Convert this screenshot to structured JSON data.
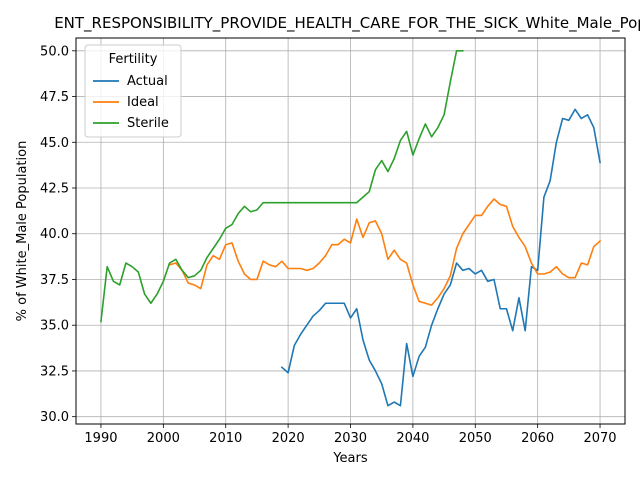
{
  "chart_data": {
    "type": "line",
    "title": "ENT_RESPONSIBILITY_PROVIDE_HEALTH_CARE_FOR_THE_SICK_White_Male_Pop",
    "xlabel": "Years",
    "ylabel": "% of White_Male Population",
    "xlim": [
      1986,
      2074
    ],
    "ylim": [
      29.6,
      50.7
    ],
    "xticks": [
      1990,
      2000,
      2010,
      2020,
      2030,
      2040,
      2050,
      2060,
      2070
    ],
    "yticks": [
      30.0,
      32.5,
      35.0,
      37.5,
      40.0,
      42.5,
      45.0,
      47.5,
      50.0
    ],
    "xtick_labels": [
      "1990",
      "2000",
      "2010",
      "2020",
      "2030",
      "2040",
      "2050",
      "2060",
      "2070"
    ],
    "ytick_labels": [
      "30.0",
      "32.5",
      "35.0",
      "37.5",
      "40.0",
      "42.5",
      "45.0",
      "47.5",
      "50.0"
    ],
    "grid": true,
    "legend": {
      "title": "Fertility",
      "placement": "upper-left"
    },
    "series": [
      {
        "name": "Actual",
        "color": "#1f77b4",
        "x": [
          2019,
          2020,
          2021,
          2022,
          2023,
          2024,
          2025,
          2026,
          2027,
          2028,
          2029,
          2030,
          2031,
          2032,
          2033,
          2034,
          2035,
          2036,
          2037,
          2038,
          2039,
          2040,
          2041,
          2042,
          2043,
          2044,
          2045,
          2046,
          2047,
          2048,
          2049,
          2050,
          2051,
          2052,
          2053,
          2054,
          2055,
          2056,
          2057,
          2058,
          2059,
          2060,
          2061,
          2062,
          2063,
          2064,
          2065,
          2066,
          2067,
          2068,
          2069,
          2070
        ],
        "y": [
          32.7,
          32.4,
          33.9,
          34.5,
          35.0,
          35.5,
          35.8,
          36.2,
          36.2,
          36.2,
          36.2,
          35.4,
          35.9,
          34.2,
          33.1,
          32.5,
          31.8,
          30.6,
          30.8,
          30.6,
          34.0,
          32.2,
          33.3,
          33.8,
          35.0,
          35.9,
          36.7,
          37.2,
          38.4,
          38.0,
          38.1,
          37.8,
          38.0,
          37.4,
          37.5,
          35.9,
          35.9,
          34.7,
          36.5,
          34.7,
          38.2,
          38.0,
          42.0,
          42.9,
          45.0,
          46.3,
          46.2,
          46.8,
          46.3,
          46.5,
          45.8,
          43.9
        ]
      },
      {
        "name": "Ideal",
        "color": "#ff7f0e",
        "x": [
          2001,
          2002,
          2003,
          2004,
          2005,
          2006,
          2007,
          2008,
          2009,
          2010,
          2011,
          2012,
          2013,
          2014,
          2015,
          2016,
          2017,
          2018,
          2019,
          2020,
          2021,
          2022,
          2023,
          2024,
          2025,
          2026,
          2027,
          2028,
          2029,
          2030,
          2031,
          2032,
          2033,
          2034,
          2035,
          2036,
          2037,
          2038,
          2039,
          2040,
          2041,
          2042,
          2043,
          2044,
          2045,
          2046,
          2047,
          2048,
          2049,
          2050,
          2051,
          2052,
          2053,
          2054,
          2055,
          2056,
          2057,
          2058,
          2059,
          2060,
          2061,
          2062,
          2063,
          2064,
          2065,
          2066,
          2067,
          2068,
          2069,
          2070
        ],
        "y": [
          38.3,
          38.4,
          38.0,
          37.3,
          37.2,
          37.0,
          38.3,
          38.8,
          38.6,
          39.4,
          39.5,
          38.5,
          37.8,
          37.5,
          37.5,
          38.5,
          38.3,
          38.2,
          38.5,
          38.1,
          38.1,
          38.1,
          38.0,
          38.1,
          38.4,
          38.8,
          39.4,
          39.4,
          39.7,
          39.5,
          40.8,
          39.8,
          40.6,
          40.7,
          40.0,
          38.6,
          39.1,
          38.6,
          38.4,
          37.2,
          36.3,
          36.2,
          36.1,
          36.5,
          37.0,
          37.7,
          39.2,
          40.0,
          40.5,
          41.0,
          41.0,
          41.5,
          41.9,
          41.6,
          41.5,
          40.4,
          39.8,
          39.3,
          38.4,
          37.8,
          37.8,
          37.9,
          38.2,
          37.8,
          37.6,
          37.6,
          38.4,
          38.3,
          39.3,
          39.6
        ]
      },
      {
        "name": "Sterile",
        "color": "#2ca02c",
        "x": [
          1990,
          1991,
          1992,
          1993,
          1994,
          1995,
          1996,
          1997,
          1998,
          1999,
          2000,
          2001,
          2002,
          2003,
          2004,
          2005,
          2006,
          2007,
          2008,
          2009,
          2010,
          2011,
          2012,
          2013,
          2014,
          2015,
          2016,
          2017,
          2018,
          2019,
          2020,
          2021,
          2022,
          2023,
          2024,
          2025,
          2026,
          2027,
          2028,
          2029,
          2030,
          2031,
          2032,
          2033,
          2034,
          2035,
          2036,
          2037,
          2038,
          2039,
          2040,
          2041,
          2042,
          2043,
          2044,
          2045,
          2046,
          2047,
          2048
        ],
        "y": [
          35.2,
          38.2,
          37.4,
          37.2,
          38.4,
          38.2,
          37.9,
          36.7,
          36.2,
          36.7,
          37.4,
          38.4,
          38.6,
          38.0,
          37.6,
          37.7,
          38.0,
          38.7,
          39.2,
          39.7,
          40.3,
          40.5,
          41.1,
          41.5,
          41.2,
          41.3,
          41.7,
          41.7,
          41.7,
          41.7,
          41.7,
          41.7,
          41.7,
          41.7,
          41.7,
          41.7,
          41.7,
          41.7,
          41.7,
          41.7,
          41.7,
          41.7,
          42.0,
          42.3,
          43.5,
          44.0,
          43.4,
          44.1,
          45.1,
          45.6,
          44.3,
          45.2,
          46.0,
          45.3,
          45.8,
          46.5,
          48.3,
          50.0,
          50.0
        ]
      }
    ]
  }
}
